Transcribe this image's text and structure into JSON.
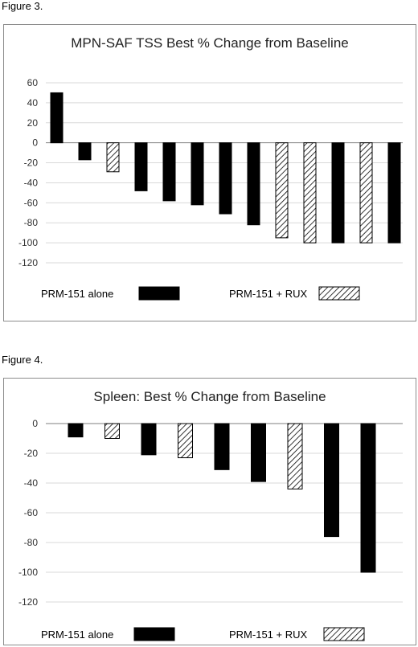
{
  "figures": [
    {
      "label": "Figure 3."
    },
    {
      "label": "Figure 4."
    }
  ],
  "colors": {
    "solid": "#000000",
    "grid": "#d9d9d9",
    "axis": "#7f7f7f",
    "hatch": "#000000"
  },
  "chart_data": [
    {
      "type": "bar",
      "title": "MPN-SAF TSS Best % Change from Baseline",
      "xlabel": "",
      "ylabel": "",
      "ylim": [
        -120,
        60
      ],
      "yticks": [
        60,
        40,
        20,
        0,
        -20,
        -40,
        -60,
        -80,
        -100,
        -120
      ],
      "grid": true,
      "legend_position": "bottom",
      "series": [
        {
          "name": "PRM-151 alone",
          "pattern": "solid"
        },
        {
          "name": "PRM-151 + RUX",
          "pattern": "hatched"
        }
      ],
      "bars": [
        {
          "value": 50,
          "series": "PRM-151 alone"
        },
        {
          "value": -17,
          "series": "PRM-151 alone"
        },
        {
          "value": -29,
          "series": "PRM-151 + RUX"
        },
        {
          "value": -48,
          "series": "PRM-151 alone"
        },
        {
          "value": -58,
          "series": "PRM-151 alone"
        },
        {
          "value": -62,
          "series": "PRM-151 alone"
        },
        {
          "value": -71,
          "series": "PRM-151 alone"
        },
        {
          "value": -82,
          "series": "PRM-151 alone"
        },
        {
          "value": -95,
          "series": "PRM-151 + RUX"
        },
        {
          "value": -100,
          "series": "PRM-151 + RUX"
        },
        {
          "value": -100,
          "series": "PRM-151 alone"
        },
        {
          "value": -100,
          "series": "PRM-151 + RUX"
        },
        {
          "value": -100,
          "series": "PRM-151 alone"
        }
      ]
    },
    {
      "type": "bar",
      "title": "Spleen: Best % Change from Baseline",
      "xlabel": "",
      "ylabel": "",
      "ylim": [
        -120,
        0
      ],
      "yticks": [
        0,
        -20,
        -40,
        -60,
        -80,
        -100,
        -120
      ],
      "grid": true,
      "legend_position": "bottom",
      "series": [
        {
          "name": "PRM-151 alone",
          "pattern": "solid"
        },
        {
          "name": "PRM-151 + RUX",
          "pattern": "hatched"
        }
      ],
      "bars": [
        {
          "value": -9,
          "series": "PRM-151 alone"
        },
        {
          "value": -10,
          "series": "PRM-151 + RUX"
        },
        {
          "value": -21,
          "series": "PRM-151 alone"
        },
        {
          "value": -23,
          "series": "PRM-151 + RUX"
        },
        {
          "value": -31,
          "series": "PRM-151 alone"
        },
        {
          "value": -39,
          "series": "PRM-151 alone"
        },
        {
          "value": -44,
          "series": "PRM-151 + RUX"
        },
        {
          "value": -76,
          "series": "PRM-151 alone"
        },
        {
          "value": -100,
          "series": "PRM-151 alone"
        }
      ]
    }
  ]
}
